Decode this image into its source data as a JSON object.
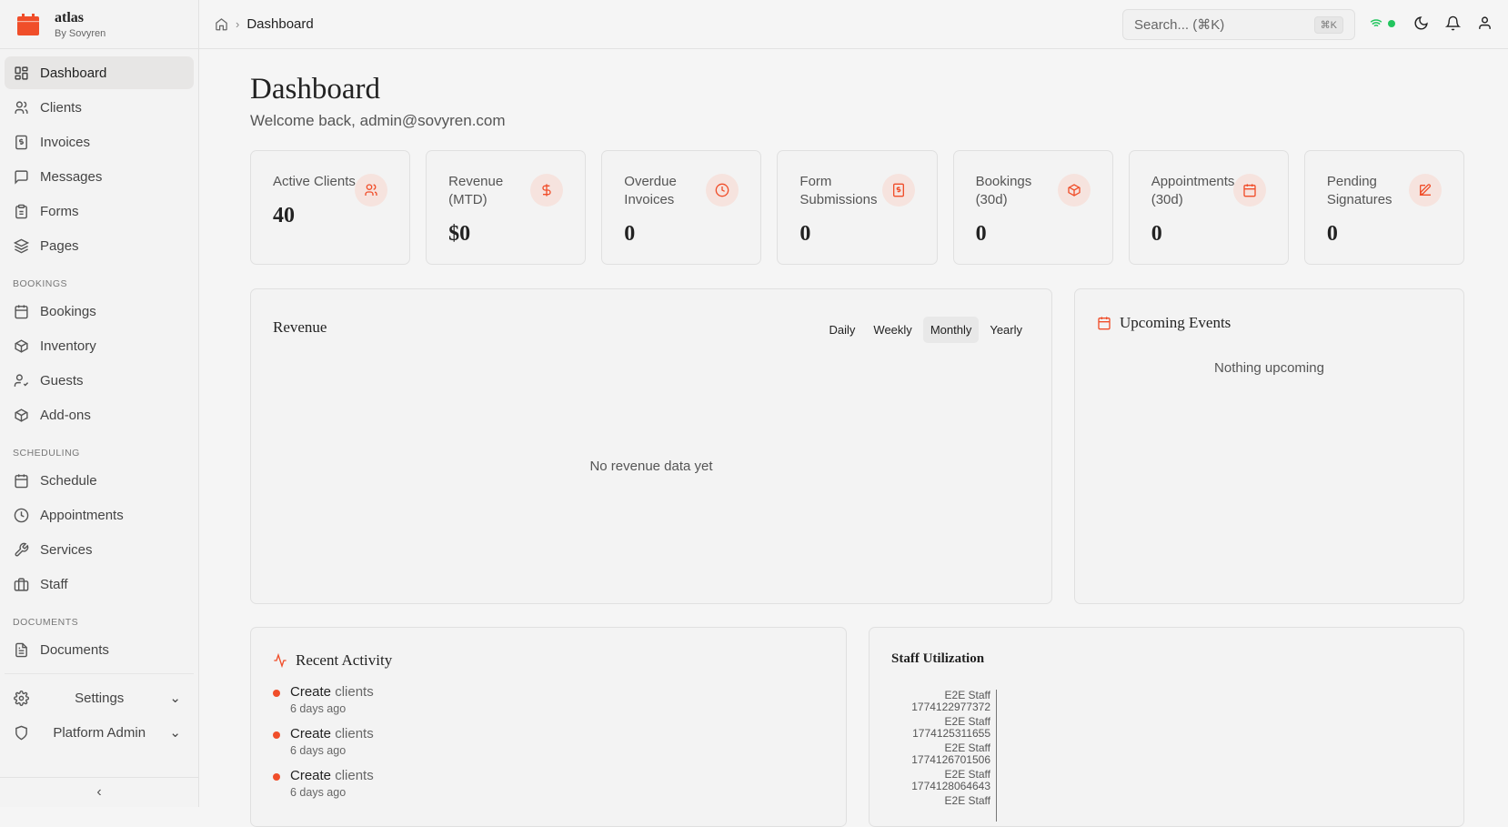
{
  "brand": {
    "name": "atlas",
    "sub": "By Sovyren",
    "color": "#f04e2a"
  },
  "sidebar": {
    "items": [
      {
        "label": "Dashboard",
        "icon": "dashboard-icon",
        "active": true
      },
      {
        "label": "Clients",
        "icon": "users-icon"
      },
      {
        "label": "Invoices",
        "icon": "invoice-icon"
      },
      {
        "label": "Messages",
        "icon": "message-icon"
      },
      {
        "label": "Forms",
        "icon": "clipboard-icon"
      },
      {
        "label": "Pages",
        "icon": "layers-icon"
      }
    ],
    "bookings_label": "BOOKINGS",
    "bookings": [
      {
        "label": "Bookings",
        "icon": "calendar-icon"
      },
      {
        "label": "Inventory",
        "icon": "box-icon"
      },
      {
        "label": "Guests",
        "icon": "user-check-icon"
      },
      {
        "label": "Add-ons",
        "icon": "box-icon"
      }
    ],
    "scheduling_label": "SCHEDULING",
    "scheduling": [
      {
        "label": "Schedule",
        "icon": "calendar-icon"
      },
      {
        "label": "Appointments",
        "icon": "clock-icon"
      },
      {
        "label": "Services",
        "icon": "wrench-icon"
      },
      {
        "label": "Staff",
        "icon": "briefcase-icon"
      }
    ],
    "documents_label": "DOCUMENTS",
    "documents": [
      {
        "label": "Documents",
        "icon": "file-icon"
      }
    ],
    "settings": "Settings",
    "platform_admin": "Platform Admin"
  },
  "header": {
    "breadcrumb": "Dashboard",
    "search_placeholder": "Search... (⌘K)",
    "shortcut": "⌘K",
    "status_color": "#22c55e"
  },
  "page": {
    "title": "Dashboard",
    "welcome": "Welcome back, admin@sovyren.com"
  },
  "stats": [
    {
      "label": "Active Clients",
      "value": "40",
      "icon": "users-icon"
    },
    {
      "label": "Revenue (MTD)",
      "value": "$0",
      "icon": "dollar-icon"
    },
    {
      "label": "Overdue Invoices",
      "value": "0",
      "icon": "clock-icon"
    },
    {
      "label": "Form Submissions",
      "value": "0",
      "icon": "invoice-icon"
    },
    {
      "label": "Bookings (30d)",
      "value": "0",
      "icon": "box-icon"
    },
    {
      "label": "Appointments (30d)",
      "value": "0",
      "icon": "calendar-icon"
    },
    {
      "label": "Pending Signatures",
      "value": "0",
      "icon": "edit-icon"
    }
  ],
  "revenue": {
    "title": "Revenue",
    "tabs": [
      "Daily",
      "Weekly",
      "Monthly",
      "Yearly"
    ],
    "active_tab": "Monthly",
    "empty": "No revenue data yet"
  },
  "events": {
    "title": "Upcoming Events",
    "empty": "Nothing upcoming"
  },
  "activity": {
    "title": "Recent Activity",
    "items": [
      {
        "action": "Create",
        "target": "clients",
        "time": "6 days ago"
      },
      {
        "action": "Create",
        "target": "clients",
        "time": "6 days ago"
      },
      {
        "action": "Create",
        "target": "clients",
        "time": "6 days ago"
      }
    ]
  },
  "staff": {
    "title": "Staff Utilization",
    "rows": [
      {
        "name": "E2E Staff",
        "id": "1774122977372"
      },
      {
        "name": "E2E Staff",
        "id": "1774125311655"
      },
      {
        "name": "E2E Staff",
        "id": "1774126701506"
      },
      {
        "name": "E2E Staff",
        "id": "1774128064643"
      },
      {
        "name": "E2E Staff",
        "id": ""
      }
    ]
  }
}
